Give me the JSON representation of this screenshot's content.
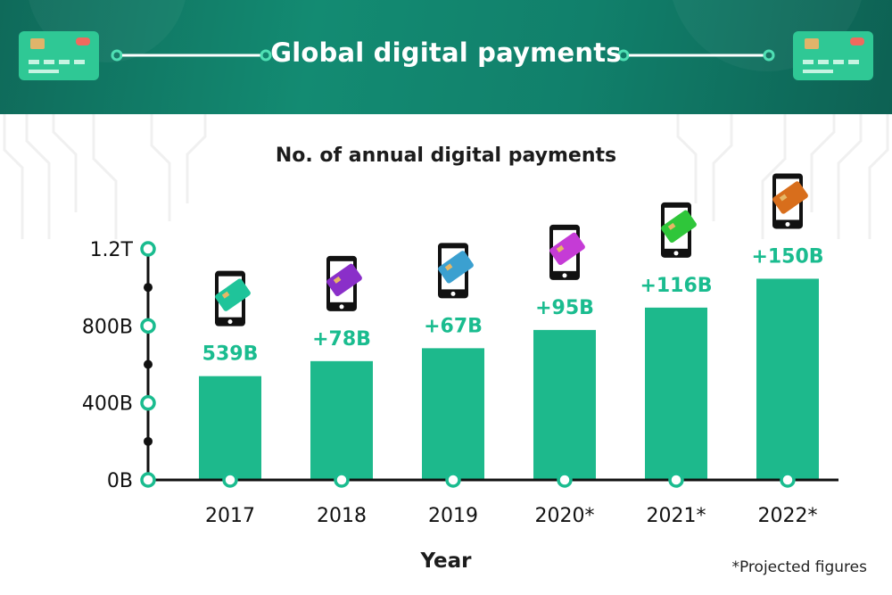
{
  "banner": {
    "title": "Global digital payments",
    "icons": [
      "credit-card-icon",
      "credit-card-icon"
    ]
  },
  "colors": {
    "accent": "#1abc8f",
    "bar": "#1db98c",
    "banner": "#128470",
    "phone_cards": [
      "#1fc49a",
      "#8a2fc9",
      "#3ba0d0",
      "#c53bd6",
      "#2fc63a",
      "#d86e1c"
    ]
  },
  "note": "*Projected figures",
  "chart_data": {
    "type": "bar",
    "title": "No. of annual digital payments",
    "xlabel": "Year",
    "ylabel": "",
    "categories": [
      "2017",
      "2018",
      "2019",
      "2020*",
      "2021*",
      "2022*"
    ],
    "values": [
      539,
      617,
      684,
      779,
      895,
      1045
    ],
    "value_unit": "B",
    "data_labels": [
      "539B",
      "+78B",
      "+67B",
      "+95B",
      "+116B",
      "+150B"
    ],
    "yticks": [
      "0B",
      "400B",
      "800B",
      "1.2T"
    ],
    "ylim": [
      0,
      1200
    ],
    "grid": false,
    "legend": "none"
  }
}
